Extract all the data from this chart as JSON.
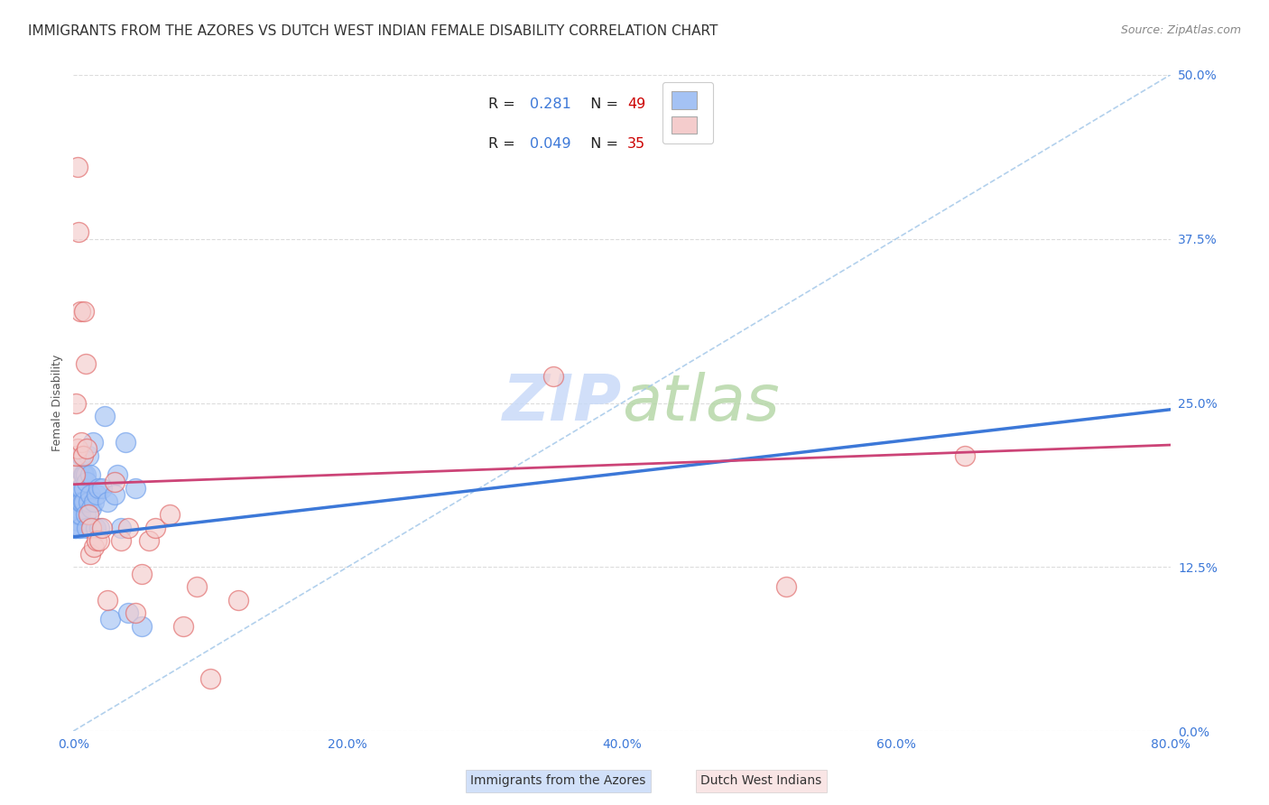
{
  "title": "IMMIGRANTS FROM THE AZORES VS DUTCH WEST INDIAN FEMALE DISABILITY CORRELATION CHART",
  "source": "Source: ZipAtlas.com",
  "ylabel": "Female Disability",
  "xlabel_ticks": [
    "0.0%",
    "20.0%",
    "40.0%",
    "60.0%",
    "80.0%"
  ],
  "ylabel_ticks": [
    "0.0%",
    "12.5%",
    "25.0%",
    "37.5%",
    "50.0%"
  ],
  "xlim": [
    0.0,
    0.8
  ],
  "ylim": [
    0.0,
    0.5
  ],
  "watermark_zip": "ZIP",
  "watermark_atlas": "atlas",
  "blue_color": "#a4c2f4",
  "pink_color": "#f4cccc",
  "blue_edge_color": "#6d9eeb",
  "pink_edge_color": "#e06666",
  "blue_line_color": "#3c78d8",
  "pink_line_color": "#cc4477",
  "dashed_line_color": "#9fc5e8",
  "legend_label_blue": "Immigrants from the Azores",
  "legend_label_pink": "Dutch West Indians",
  "blue_scatter_x": [
    0.001,
    0.001,
    0.002,
    0.002,
    0.002,
    0.003,
    0.003,
    0.003,
    0.004,
    0.004,
    0.004,
    0.005,
    0.005,
    0.005,
    0.005,
    0.006,
    0.006,
    0.006,
    0.007,
    0.007,
    0.008,
    0.008,
    0.008,
    0.009,
    0.009,
    0.01,
    0.01,
    0.011,
    0.011,
    0.012,
    0.012,
    0.013,
    0.014,
    0.015,
    0.016,
    0.017,
    0.018,
    0.019,
    0.021,
    0.023,
    0.025,
    0.027,
    0.03,
    0.032,
    0.035,
    0.038,
    0.04,
    0.045,
    0.05
  ],
  "blue_scatter_y": [
    0.155,
    0.17,
    0.155,
    0.165,
    0.175,
    0.16,
    0.17,
    0.18,
    0.155,
    0.165,
    0.2,
    0.155,
    0.165,
    0.175,
    0.185,
    0.175,
    0.185,
    0.21,
    0.175,
    0.195,
    0.175,
    0.185,
    0.195,
    0.165,
    0.195,
    0.155,
    0.19,
    0.175,
    0.21,
    0.18,
    0.195,
    0.17,
    0.22,
    0.175,
    0.155,
    0.18,
    0.185,
    0.155,
    0.185,
    0.24,
    0.175,
    0.085,
    0.18,
    0.195,
    0.155,
    0.22,
    0.09,
    0.185,
    0.08
  ],
  "pink_scatter_x": [
    0.001,
    0.002,
    0.002,
    0.003,
    0.003,
    0.004,
    0.005,
    0.006,
    0.007,
    0.008,
    0.009,
    0.01,
    0.011,
    0.012,
    0.013,
    0.015,
    0.017,
    0.019,
    0.021,
    0.025,
    0.03,
    0.035,
    0.04,
    0.045,
    0.05,
    0.055,
    0.06,
    0.07,
    0.08,
    0.09,
    0.1,
    0.12,
    0.35,
    0.52,
    0.65
  ],
  "pink_scatter_y": [
    0.195,
    0.21,
    0.25,
    0.215,
    0.43,
    0.38,
    0.32,
    0.22,
    0.21,
    0.32,
    0.28,
    0.215,
    0.165,
    0.135,
    0.155,
    0.14,
    0.145,
    0.145,
    0.155,
    0.1,
    0.19,
    0.145,
    0.155,
    0.09,
    0.12,
    0.145,
    0.155,
    0.165,
    0.08,
    0.11,
    0.04,
    0.1,
    0.27,
    0.11,
    0.21
  ],
  "blue_trend_x": [
    0.0,
    0.8
  ],
  "blue_trend_y": [
    0.148,
    0.245
  ],
  "pink_trend_x": [
    0.0,
    0.8
  ],
  "pink_trend_y": [
    0.188,
    0.218
  ],
  "dashed_trend_x": [
    0.0,
    0.8
  ],
  "dashed_trend_y": [
    0.0,
    0.5
  ],
  "grid_color": "#d9d9d9",
  "bg_color": "#ffffff",
  "title_fontsize": 11,
  "axis_label_fontsize": 9,
  "tick_fontsize": 10,
  "source_fontsize": 9,
  "r_color": "#3c78d8",
  "n_color": "#cc0000"
}
